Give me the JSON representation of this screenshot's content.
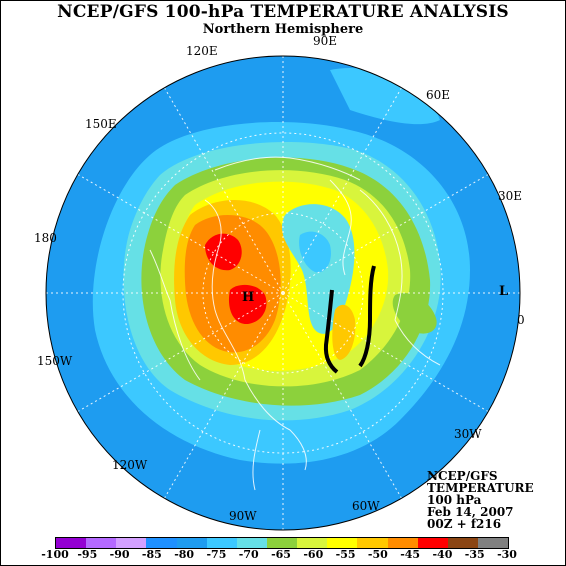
{
  "title": "NCEP/GFS 100-hPa TEMPERATURE ANALYSIS",
  "subtitle": "Northern Hemisphere",
  "lon_labels": {
    "e120": "120E",
    "n90e": "90E",
    "e60": "60E",
    "e150": "150E",
    "e30": "30E",
    "e180": "180",
    "e0": "0",
    "w150": "150W",
    "w30": "30W",
    "w120": "120W",
    "w90": "90W",
    "w60": "60W"
  },
  "markers": {
    "high": "H",
    "low": "L"
  },
  "info": {
    "line1": "NCEP/GFS",
    "line2": "TEMPERATURE",
    "line3": "100 hPa",
    "line4": "Feb 14, 2007",
    "line5": "00Z + f216"
  },
  "colorbar": {
    "labels": [
      "-100",
      "-95",
      "-90",
      "-85",
      "-80",
      "-75",
      "-70",
      "-65",
      "-60",
      "-55",
      "-50",
      "-45",
      "-40",
      "-35",
      "-30"
    ],
    "colors": [
      "#9400d3",
      "#b469ff",
      "#d3a0ff",
      "#1e90ff",
      "#1e9cf0",
      "#3cc8ff",
      "#66e0e6",
      "#8cd13c",
      "#d8f53c",
      "#ffff00",
      "#ffc800",
      "#ff8c00",
      "#ff0000",
      "#8b4513",
      "#808080"
    ]
  },
  "palette": {
    "ocean_blue": "#1e9cf0",
    "light_blue": "#3cc8ff",
    "cyan": "#66e0e6",
    "green": "#8cd13c",
    "yellow_green": "#d8f53c",
    "yellow": "#ffff00",
    "gold": "#ffc800",
    "orange": "#ff8c00",
    "red": "#ff0000"
  }
}
